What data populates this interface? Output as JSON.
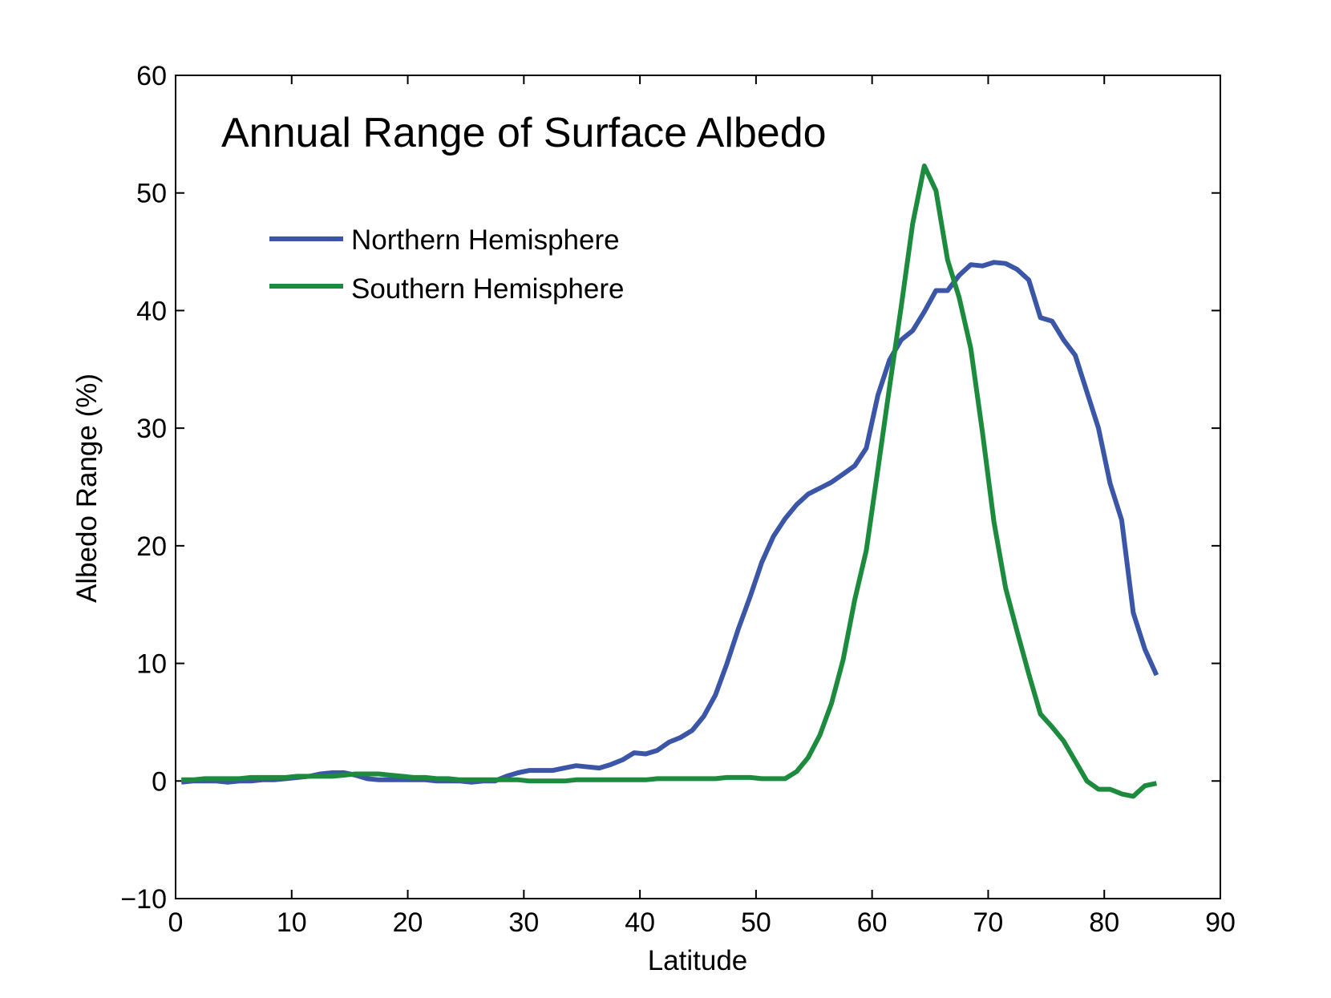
{
  "chart_data": {
    "type": "line",
    "title": "Annual Range of Surface Albedo",
    "xlabel": "Latitude",
    "ylabel": "Albedo Range (%)",
    "xlim": [
      0,
      90
    ],
    "ylim": [
      -10,
      60
    ],
    "xticks": [
      "0",
      "10",
      "20",
      "30",
      "40",
      "50",
      "60",
      "70",
      "80",
      "90"
    ],
    "yticks": [
      "−10",
      "0",
      "10",
      "20",
      "30",
      "40",
      "50",
      "60"
    ],
    "grid": false,
    "legend": "top-left",
    "series": [
      {
        "name": "Northern Hemisphere",
        "color": "#3b55a7",
        "x": [
          0.5,
          1.5,
          2.5,
          3.5,
          4.5,
          5.5,
          6.5,
          7.5,
          8.5,
          9.5,
          10.5,
          11.5,
          12.5,
          13.5,
          14.5,
          15.5,
          16.5,
          17.5,
          18.5,
          19.5,
          20.5,
          21.5,
          22.5,
          23.5,
          24.5,
          25.5,
          26.5,
          27.5,
          28.5,
          29.5,
          30.5,
          31.5,
          32.5,
          33.5,
          34.5,
          35.5,
          36.5,
          37.5,
          38.5,
          39.5,
          40.5,
          41.5,
          42.5,
          43.5,
          44.5,
          45.5,
          46.5,
          47.5,
          48.5,
          49.5,
          50.5,
          51.5,
          52.5,
          53.5,
          54.5,
          55.5,
          56.5,
          57.5,
          58.5,
          59.5,
          60.5,
          61.5,
          62.5,
          63.5,
          64.5,
          65.5,
          66.5,
          67.5,
          68.5,
          69.5,
          70.5,
          71.5,
          72.5,
          73.5,
          74.5,
          75.5,
          76.5,
          77.5,
          78.5,
          79.5,
          80.5,
          81.5,
          82.5,
          83.5,
          84.5
        ],
        "y": [
          -0.1,
          0,
          0,
          0,
          -0.1,
          0,
          0,
          0.1,
          0.1,
          0.2,
          0.3,
          0.4,
          0.6,
          0.7,
          0.7,
          0.5,
          0.2,
          0.1,
          0.1,
          0.1,
          0.1,
          0.1,
          0,
          0,
          0,
          -0.1,
          0,
          0,
          0.4,
          0.7,
          0.9,
          0.9,
          0.9,
          1.1,
          1.3,
          1.2,
          1.1,
          1.4,
          1.8,
          2.4,
          2.3,
          2.6,
          3.3,
          3.7,
          4.3,
          5.5,
          7.3,
          10,
          13,
          15.7,
          18.6,
          20.8,
          22.3,
          23.5,
          24.4,
          24.9,
          25.4,
          26.1,
          26.8,
          28.3,
          32.8,
          35.8,
          37.5,
          38.3,
          39.9,
          41.7,
          41.7,
          43,
          43.9,
          43.8,
          44.1,
          44,
          43.5,
          42.6,
          39.4,
          39.1,
          37.5,
          36.2,
          33.1,
          30,
          25.3,
          22.2,
          14.3,
          11.2,
          9
        ]
      },
      {
        "name": "Southern Hemisphere",
        "color": "#1d8b3e",
        "x": [
          0.5,
          1.5,
          2.5,
          3.5,
          4.5,
          5.5,
          6.5,
          7.5,
          8.5,
          9.5,
          10.5,
          11.5,
          12.5,
          13.5,
          14.5,
          15.5,
          16.5,
          17.5,
          18.5,
          19.5,
          20.5,
          21.5,
          22.5,
          23.5,
          24.5,
          25.5,
          26.5,
          27.5,
          28.5,
          29.5,
          30.5,
          31.5,
          32.5,
          33.5,
          34.5,
          35.5,
          36.5,
          37.5,
          38.5,
          39.5,
          40.5,
          41.5,
          42.5,
          43.5,
          44.5,
          45.5,
          46.5,
          47.5,
          48.5,
          49.5,
          50.5,
          51.5,
          52.5,
          53.5,
          54.5,
          55.5,
          56.5,
          57.5,
          58.5,
          59.5,
          60.5,
          61.5,
          62.5,
          63.5,
          64.5,
          65.5,
          66.5,
          67.5,
          68.5,
          69.5,
          70.5,
          71.5,
          72.5,
          73.5,
          74.5,
          75.5,
          76.5,
          77.5,
          78.5,
          79.5,
          80.5,
          81.5,
          82.5,
          83.5,
          84.5
        ],
        "y": [
          0.1,
          0.1,
          0.2,
          0.2,
          0.2,
          0.2,
          0.3,
          0.3,
          0.3,
          0.3,
          0.4,
          0.4,
          0.4,
          0.4,
          0.5,
          0.6,
          0.6,
          0.6,
          0.5,
          0.4,
          0.3,
          0.3,
          0.2,
          0.2,
          0.1,
          0.1,
          0.1,
          0.1,
          0.1,
          0.1,
          0,
          0,
          0,
          0,
          0.1,
          0.1,
          0.1,
          0.1,
          0.1,
          0.1,
          0.1,
          0.2,
          0.2,
          0.2,
          0.2,
          0.2,
          0.2,
          0.3,
          0.3,
          0.3,
          0.2,
          0.2,
          0.2,
          0.8,
          2,
          3.9,
          6.6,
          10.3,
          15.4,
          19.6,
          26.5,
          33.5,
          40.3,
          47.4,
          52.3,
          50.2,
          44.3,
          41.1,
          36.8,
          29.7,
          22,
          16.4,
          12.7,
          9.1,
          5.7,
          4.6,
          3.4,
          1.7,
          0,
          -0.7,
          -0.7,
          -1.1,
          -1.3,
          -0.4,
          -0.2
        ]
      }
    ]
  }
}
